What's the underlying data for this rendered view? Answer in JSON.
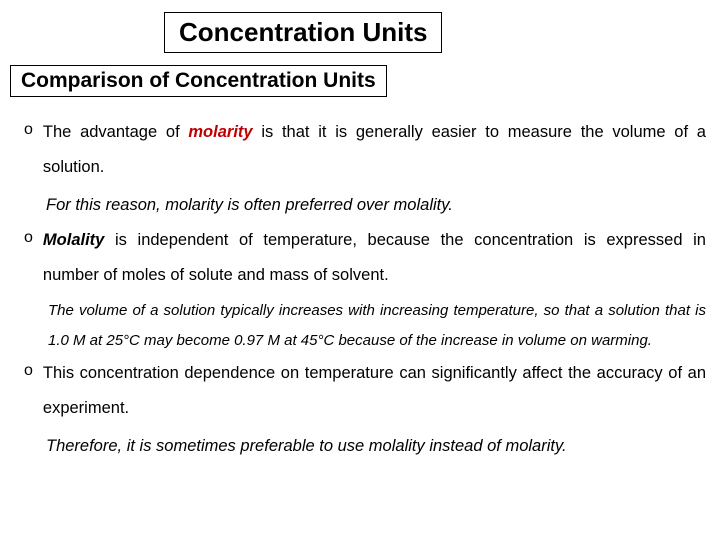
{
  "title": "Concentration Units",
  "subtitle": "Comparison of Concentration Units",
  "bullets": {
    "b1": {
      "marker": "o",
      "pre": "The advantage of ",
      "term": "molarity",
      "post": " is that it is generally easier to measure the volume of a solution."
    },
    "note1": "For this reason, molarity is often preferred over molality.",
    "b2": {
      "marker": "o",
      "term": "Molality",
      "post": " is independent of temperature, because the concentration is expressed in number of moles of solute and mass of solvent."
    },
    "note2": "The volume of a solution typically increases with increasing temperature, so that a solution that is 1.0 M at 25°C may become 0.97 M at 45°C because of the increase in volume on warming.",
    "b3": {
      "marker": "o",
      "text": "This concentration dependence on temperature can significantly affect the accuracy of an experiment."
    },
    "note3": "Therefore, it is sometimes preferable to use molality instead of molarity."
  },
  "colors": {
    "accent": "#c00000",
    "text": "#000000",
    "background": "#ffffff",
    "border": "#000000"
  },
  "typography": {
    "title_fontsize": 26,
    "subtitle_fontsize": 21,
    "body_fontsize": 16.5,
    "small_italic_fontsize": 15,
    "line_height": 2.1
  }
}
